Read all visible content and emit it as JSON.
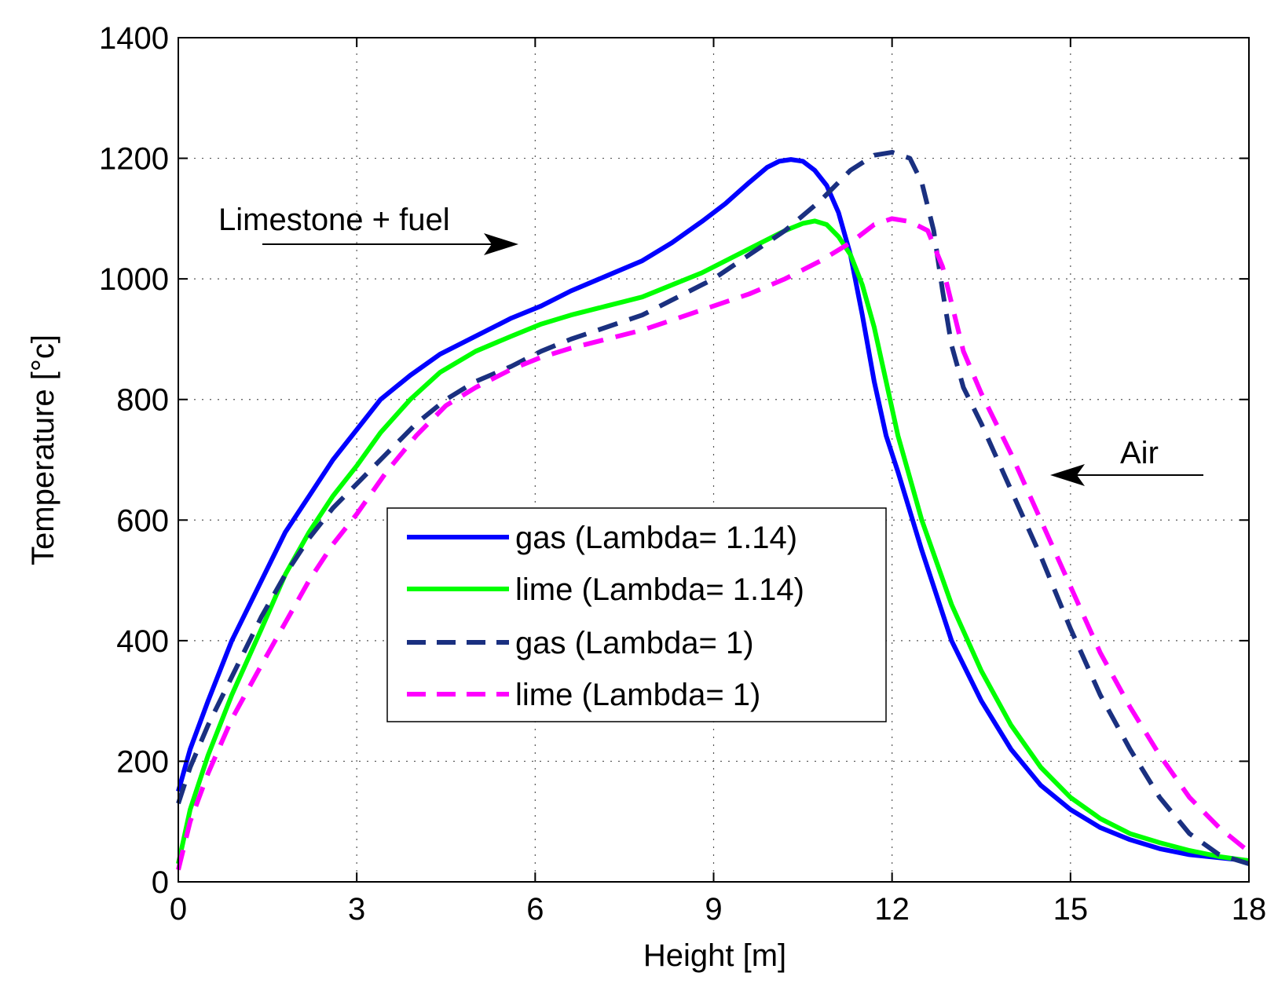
{
  "chart_data": {
    "type": "line",
    "title": "",
    "xlabel": "Height [m]",
    "ylabel": "Temperature [°c]",
    "xlim": [
      0,
      18
    ],
    "ylim": [
      0,
      1400
    ],
    "xticks": [
      0,
      3,
      6,
      9,
      12,
      15,
      18
    ],
    "yticks": [
      0,
      200,
      400,
      600,
      800,
      1000,
      1200,
      1400
    ],
    "grid": true,
    "legend_position": "center-left",
    "series": [
      {
        "name": "gas (Lambda= 1.14)",
        "color": "#0000ff",
        "dash": "solid",
        "x": [
          0,
          0.2,
          0.5,
          0.9,
          1.4,
          1.8,
          2.2,
          2.6,
          3.0,
          3.4,
          3.9,
          4.4,
          5.0,
          5.6,
          6.1,
          6.6,
          7.2,
          7.8,
          8.3,
          8.8,
          9.2,
          9.6,
          9.9,
          10.1,
          10.3,
          10.5,
          10.7,
          10.9,
          11.1,
          11.3,
          11.5,
          11.7,
          11.9,
          12.1,
          12.5,
          13.0,
          13.5,
          14.0,
          14.5,
          15.0,
          15.5,
          16.0,
          16.5,
          17.0,
          17.5,
          18.0
        ],
        "y": [
          150,
          220,
          300,
          400,
          500,
          580,
          640,
          700,
          750,
          800,
          840,
          875,
          905,
          935,
          955,
          980,
          1005,
          1030,
          1060,
          1095,
          1125,
          1160,
          1185,
          1195,
          1198,
          1195,
          1180,
          1155,
          1110,
          1040,
          940,
          830,
          740,
          680,
          550,
          400,
          300,
          220,
          160,
          120,
          90,
          70,
          55,
          45,
          40,
          35
        ]
      },
      {
        "name": "lime (Lambda= 1.14)",
        "color": "#00ff00",
        "dash": "solid",
        "x": [
          0,
          0.2,
          0.5,
          0.9,
          1.4,
          1.8,
          2.2,
          2.6,
          3.0,
          3.4,
          3.9,
          4.4,
          5.0,
          5.6,
          6.1,
          6.6,
          7.2,
          7.8,
          8.3,
          8.8,
          9.3,
          9.8,
          10.2,
          10.5,
          10.7,
          10.9,
          11.1,
          11.3,
          11.5,
          11.7,
          11.9,
          12.1,
          12.5,
          13.0,
          13.5,
          14.0,
          14.5,
          15.0,
          15.5,
          16.0,
          16.5,
          17.0,
          17.5,
          18.0
        ],
        "y": [
          30,
          120,
          210,
          310,
          420,
          510,
          580,
          640,
          690,
          745,
          800,
          845,
          880,
          905,
          925,
          940,
          955,
          970,
          990,
          1010,
          1035,
          1060,
          1080,
          1092,
          1096,
          1090,
          1070,
          1040,
          990,
          920,
          830,
          740,
          600,
          460,
          350,
          260,
          190,
          140,
          105,
          80,
          65,
          52,
          42,
          35
        ]
      },
      {
        "name": "gas (Lambda= 1)",
        "color": "#1a3080",
        "dash": "dashed",
        "x": [
          0,
          0.2,
          0.5,
          0.9,
          1.4,
          1.8,
          2.2,
          2.6,
          3.0,
          3.5,
          4.0,
          4.5,
          5.0,
          5.6,
          6.1,
          6.6,
          7.2,
          7.8,
          8.4,
          9.0,
          9.6,
          10.2,
          10.8,
          11.3,
          11.7,
          12.0,
          12.3,
          12.5,
          12.7,
          12.85,
          13.0,
          13.2,
          13.5,
          14.0,
          14.5,
          15.0,
          15.5,
          16.0,
          16.5,
          17.0,
          17.5,
          18.0
        ],
        "y": [
          130,
          190,
          260,
          340,
          440,
          510,
          570,
          620,
          660,
          710,
          760,
          800,
          830,
          855,
          880,
          900,
          920,
          940,
          970,
          1000,
          1040,
          1080,
          1130,
          1180,
          1205,
          1210,
          1200,
          1160,
          1080,
          980,
          890,
          820,
          760,
          650,
          540,
          420,
          310,
          220,
          140,
          80,
          45,
          30
        ]
      },
      {
        "name": "lime (Lambda= 1)",
        "color": "#ff00ff",
        "dash": "dashed",
        "x": [
          0,
          0.2,
          0.5,
          0.9,
          1.4,
          1.8,
          2.2,
          2.6,
          3.0,
          3.5,
          4.0,
          4.5,
          5.0,
          5.6,
          6.1,
          6.6,
          7.2,
          7.8,
          8.4,
          9.0,
          9.6,
          10.2,
          10.8,
          11.3,
          11.7,
          12.0,
          12.3,
          12.6,
          12.85,
          13.0,
          13.2,
          13.5,
          14.0,
          14.5,
          15.0,
          15.5,
          16.0,
          16.5,
          17.0,
          17.5,
          18.0
        ],
        "y": [
          20,
          100,
          180,
          270,
          360,
          430,
          500,
          560,
          610,
          680,
          740,
          790,
          820,
          850,
          870,
          885,
          900,
          915,
          935,
          955,
          975,
          1000,
          1030,
          1060,
          1090,
          1100,
          1095,
          1080,
          1020,
          960,
          880,
          810,
          710,
          600,
          490,
          380,
          290,
          210,
          140,
          90,
          50
        ]
      }
    ],
    "annotations": [
      {
        "text": "Limestone + fuel",
        "arrow": "right"
      },
      {
        "text": "Air",
        "arrow": "left"
      }
    ]
  }
}
